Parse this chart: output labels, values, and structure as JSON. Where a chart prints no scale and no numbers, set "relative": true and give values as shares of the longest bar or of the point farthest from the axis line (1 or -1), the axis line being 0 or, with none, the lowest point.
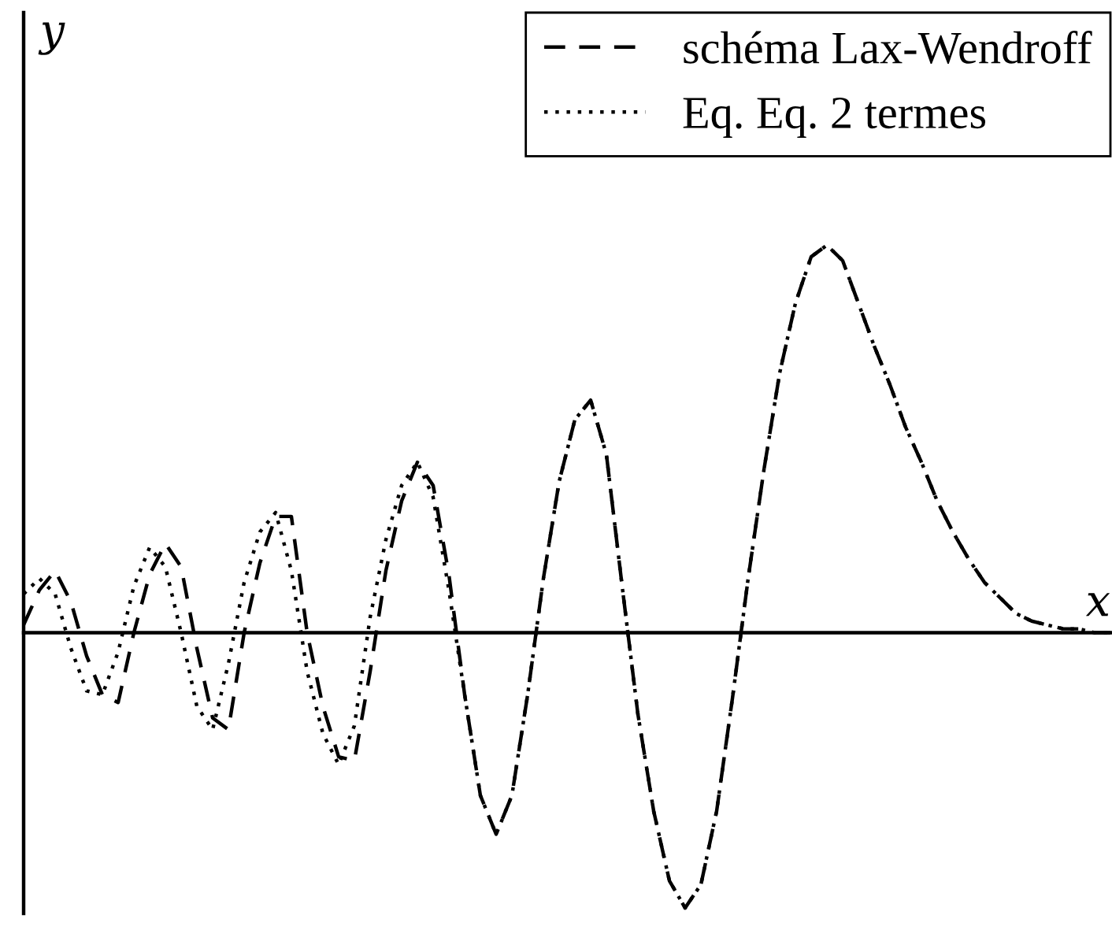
{
  "chart_data": {
    "type": "line",
    "relative": true,
    "xlabel": "x",
    "ylabel": "y",
    "legend": "top right",
    "categories": [
      null,
      null,
      null,
      null,
      null,
      null,
      null,
      null,
      null,
      null,
      null,
      null,
      null,
      null,
      null,
      null,
      null,
      null,
      null,
      null,
      null,
      null,
      null,
      null,
      null,
      null,
      null,
      null,
      null,
      null,
      null,
      null,
      null,
      null,
      null,
      null,
      null,
      null,
      null,
      null,
      null,
      null,
      null,
      null,
      null,
      null,
      null,
      null,
      null,
      null,
      null,
      null,
      null,
      null,
      null,
      null,
      null,
      null,
      null,
      null,
      null,
      null,
      null,
      null,
      null,
      null,
      null,
      null,
      null,
      null
    ],
    "series": [
      {
        "name": "schéma Lax-Wendroff",
        "color": "#000000",
        "line_style": "dashed",
        "values": [
          0.02,
          0.11,
          0.16,
          0.08,
          -0.06,
          -0.16,
          -0.18,
          0,
          0.15,
          0.23,
          0.17,
          -0.04,
          -0.22,
          -0.25,
          0,
          0.18,
          0.3,
          0.3,
          0,
          -0.19,
          -0.32,
          -0.33,
          -0.1,
          0.16,
          0.34,
          0.44,
          0.38,
          0.15,
          -0.16,
          -0.42,
          -0.52,
          -0.42,
          -0.16,
          0.14,
          0.39,
          0.55,
          0.6,
          0.46,
          0.12,
          -0.21,
          -0.46,
          -0.64,
          -0.71,
          -0.65,
          -0.46,
          -0.17,
          0.14,
          0.42,
          0.67,
          0.85,
          0.97,
          1,
          0.96,
          0.85,
          0.74,
          0.64,
          0.53,
          0.44,
          0.34,
          0.26,
          0.19,
          0.13,
          0.09,
          0.05,
          0.03,
          0.02,
          0.01,
          0.01,
          0,
          0
        ]
      },
      {
        "name": "Eq. Eq. 2 termes",
        "color": "#000000",
        "line_style": "dotted",
        "values": [
          0.1,
          0.14,
          0.1,
          -0.04,
          -0.15,
          -0.16,
          -0.05,
          0.12,
          0.22,
          0.17,
          0,
          -0.19,
          -0.25,
          -0.08,
          0.13,
          0.26,
          0.31,
          0.16,
          -0.1,
          -0.26,
          -0.34,
          -0.24,
          0.04,
          0.24,
          0.38,
          0.44,
          0.35,
          0.11,
          -0.16,
          -0.42,
          -0.52,
          -0.42,
          -0.16,
          0.14,
          0.39,
          0.55,
          0.6,
          0.46,
          0.12,
          -0.21,
          -0.46,
          -0.64,
          -0.71,
          -0.65,
          -0.46,
          -0.17,
          0.14,
          0.42,
          0.67,
          0.85,
          0.97,
          1,
          0.96,
          0.85,
          0.74,
          0.64,
          0.53,
          0.44,
          0.34,
          0.26,
          0.19,
          0.13,
          0.09,
          0.05,
          0.03,
          0.02,
          0.01,
          0.01,
          0,
          0
        ]
      }
    ]
  }
}
